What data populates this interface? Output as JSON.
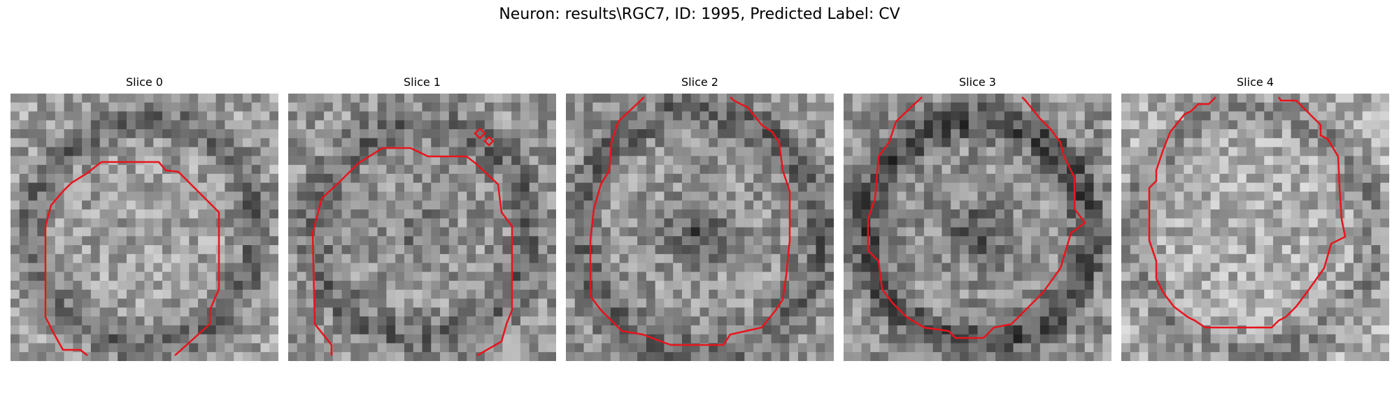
{
  "figure": {
    "title": "Neuron: results\\RGC7, ID: 1995, Predicted Label: CV"
  },
  "panels": [
    {
      "title": "Slice 0"
    },
    {
      "title": "Slice 1"
    },
    {
      "title": "Slice 2"
    },
    {
      "title": "Slice 3"
    },
    {
      "title": "Slice 4"
    }
  ],
  "colors": {
    "contour": "#e8141c",
    "background": "#ffffff"
  }
}
